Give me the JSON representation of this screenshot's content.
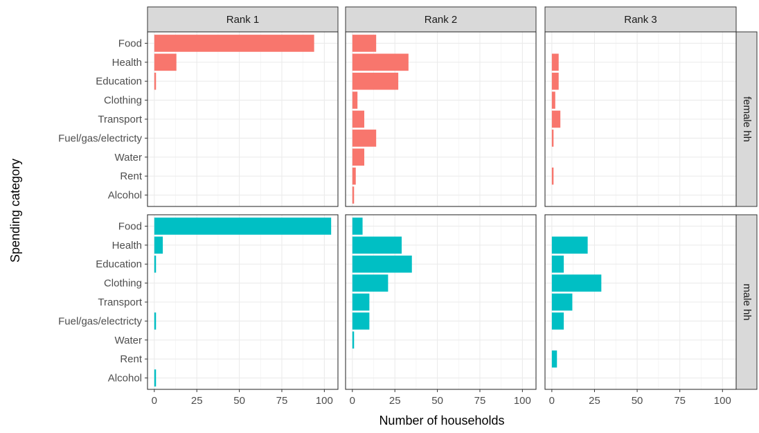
{
  "chart_data": {
    "type": "bar",
    "orientation": "horizontal",
    "facet_columns": [
      "Rank 1",
      "Rank 2",
      "Rank 3"
    ],
    "facet_rows": [
      "female hh",
      "male hh"
    ],
    "categories": [
      "Food",
      "Health",
      "Education",
      "Clothing",
      "Transport",
      "Fuel/gas/electricty",
      "Water",
      "Rent",
      "Alcohol"
    ],
    "xlabel": "Number of households",
    "ylabel": "Spending category",
    "xlim": [
      -4,
      108
    ],
    "xticks": [
      0,
      25,
      50,
      75,
      100
    ],
    "grid": true,
    "colors": {
      "female hh": "#F8766D",
      "male hh": "#00BFC4"
    },
    "panels": [
      {
        "row": "female hh",
        "column": "Rank 1",
        "values": [
          94,
          13,
          1,
          0,
          0,
          0,
          0,
          0,
          0
        ]
      },
      {
        "row": "female hh",
        "column": "Rank 2",
        "values": [
          14,
          33,
          27,
          3,
          7,
          14,
          7,
          2,
          1
        ]
      },
      {
        "row": "female hh",
        "column": "Rank 3",
        "values": [
          0,
          4,
          4,
          2,
          5,
          1,
          0,
          1,
          0
        ]
      },
      {
        "row": "male hh",
        "column": "Rank 1",
        "values": [
          104,
          5,
          1,
          0,
          0,
          1,
          0,
          0,
          1
        ]
      },
      {
        "row": "male hh",
        "column": "Rank 2",
        "values": [
          6,
          29,
          35,
          21,
          10,
          10,
          1,
          0,
          0
        ]
      },
      {
        "row": "male hh",
        "column": "Rank 3",
        "values": [
          0,
          21,
          7,
          29,
          12,
          7,
          0,
          3,
          0
        ]
      }
    ]
  }
}
